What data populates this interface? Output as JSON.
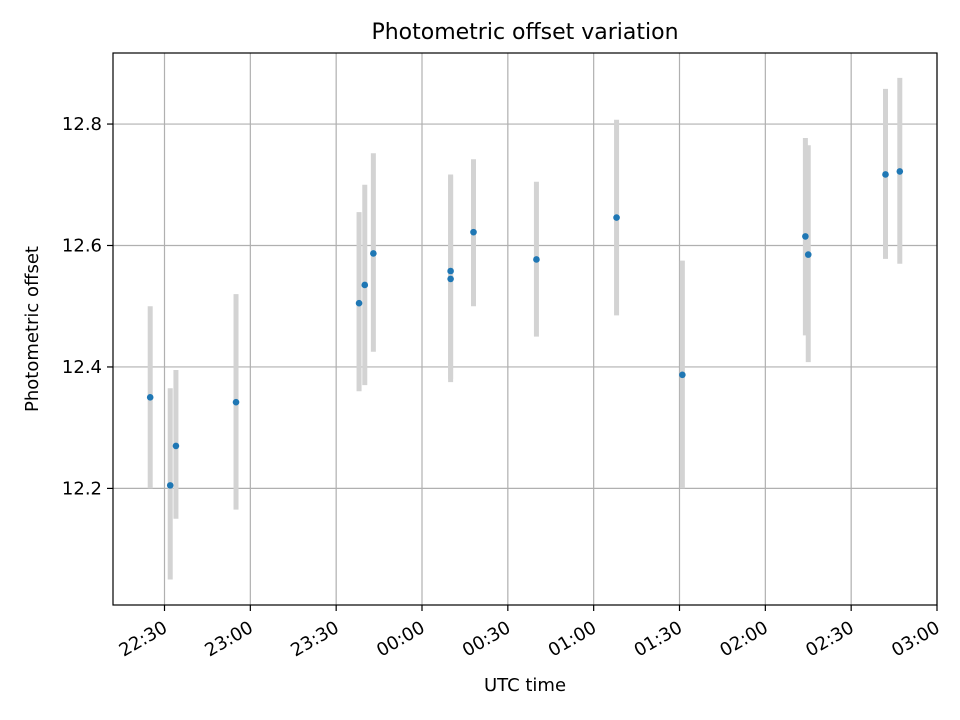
{
  "chart_data": {
    "type": "scatter",
    "title": "Photometric offset variation",
    "xlabel": "UTC time",
    "ylabel": "Photometric offset",
    "grid": true,
    "x_tick_labels": [
      "22:30",
      "23:00",
      "23:30",
      "00:00",
      "00:30",
      "01:00",
      "01:30",
      "02:00",
      "02:30",
      "03:00"
    ],
    "y_ticks": [
      12.2,
      12.4,
      12.6,
      12.8
    ],
    "y_tick_labels": [
      "12.2",
      "12.4",
      "12.6",
      "12.8"
    ],
    "ylim": [
      12.008,
      12.917
    ],
    "xlim": [
      "22:12",
      "03:00"
    ],
    "point_color": "#1f77b4",
    "errorbar_color": "#d3d3d3",
    "series": [
      {
        "points": [
          {
            "x": "22:25",
            "y": 12.35,
            "ylow": 12.2,
            "yhigh": 12.5
          },
          {
            "x": "22:32",
            "y": 12.205,
            "ylow": 12.05,
            "yhigh": 12.365
          },
          {
            "x": "22:34",
            "y": 12.27,
            "ylow": 12.15,
            "yhigh": 12.395
          },
          {
            "x": "22:55",
            "y": 12.342,
            "ylow": 12.165,
            "yhigh": 12.52
          },
          {
            "x": "23:38",
            "y": 12.505,
            "ylow": 12.36,
            "yhigh": 12.655
          },
          {
            "x": "23:40",
            "y": 12.535,
            "ylow": 12.37,
            "yhigh": 12.7
          },
          {
            "x": "23:43",
            "y": 12.587,
            "ylow": 12.425,
            "yhigh": 12.752
          },
          {
            "x": "00:10",
            "y": 12.558,
            "ylow": 12.375,
            "yhigh": 12.717
          },
          {
            "x": "00:10",
            "y": 12.545,
            "ylow": 12.38,
            "yhigh": 12.715
          },
          {
            "x": "00:18",
            "y": 12.622,
            "ylow": 12.5,
            "yhigh": 12.742
          },
          {
            "x": "00:40",
            "y": 12.577,
            "ylow": 12.45,
            "yhigh": 12.705
          },
          {
            "x": "01:08",
            "y": 12.646,
            "ylow": 12.485,
            "yhigh": 12.807
          },
          {
            "x": "01:31",
            "y": 12.387,
            "ylow": 12.2,
            "yhigh": 12.575
          },
          {
            "x": "02:14",
            "y": 12.615,
            "ylow": 12.452,
            "yhigh": 12.777
          },
          {
            "x": "02:15",
            "y": 12.585,
            "ylow": 12.408,
            "yhigh": 12.765
          },
          {
            "x": "02:42",
            "y": 12.717,
            "ylow": 12.578,
            "yhigh": 12.858
          },
          {
            "x": "02:47",
            "y": 12.722,
            "ylow": 12.57,
            "yhigh": 12.876
          }
        ]
      }
    ]
  }
}
